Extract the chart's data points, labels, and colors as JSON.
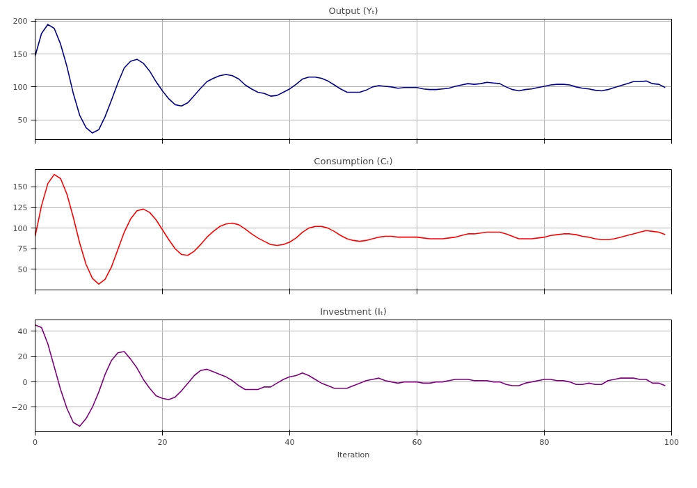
{
  "chart_data": [
    {
      "type": "line",
      "title": "Output (Yₜ)",
      "x": [
        0,
        1,
        2,
        3,
        4,
        5,
        6,
        7,
        8,
        9,
        10,
        11,
        12,
        13,
        14,
        15,
        16,
        17,
        18,
        19,
        20,
        21,
        22,
        23,
        24,
        25,
        26,
        27,
        28,
        29,
        30,
        31,
        32,
        33,
        34,
        35,
        36,
        37,
        38,
        39,
        40,
        41,
        42,
        43,
        44,
        45,
        46,
        47,
        48,
        49,
        50,
        51,
        52,
        53,
        54,
        55,
        56,
        57,
        58,
        59,
        60,
        61,
        62,
        63,
        64,
        65,
        66,
        67,
        68,
        69,
        70,
        71,
        72,
        73,
        74,
        75,
        76,
        77,
        78,
        79,
        80,
        81,
        82,
        83,
        84,
        85,
        86,
        87,
        88,
        89,
        90,
        91,
        92,
        93,
        94,
        95,
        96,
        97,
        98,
        99
      ],
      "series": [
        {
          "color": "#00008b",
          "values": [
            147,
            181,
            195,
            189,
            165,
            131,
            90,
            57,
            38,
            30,
            35,
            55,
            80,
            106,
            129,
            139,
            142,
            136,
            124,
            108,
            94,
            82,
            73,
            71,
            76,
            87,
            98,
            108,
            113,
            117,
            119,
            117,
            112,
            103,
            97,
            92,
            90,
            86,
            87,
            92,
            97,
            104,
            112,
            115,
            115,
            113,
            109,
            103,
            97,
            92,
            92,
            92,
            95,
            100,
            102,
            101,
            100,
            98,
            99,
            99,
            99,
            97,
            96,
            96,
            97,
            98,
            101,
            103,
            105,
            104,
            105,
            107,
            106,
            105,
            100,
            96,
            94,
            96,
            97,
            99,
            101,
            103,
            104,
            104,
            103,
            100,
            98,
            97,
            95,
            94,
            96,
            99,
            102,
            105,
            108,
            108,
            109,
            105,
            104,
            99
          ]
        }
      ],
      "xlim": [
        0,
        100
      ],
      "xticks": [
        0,
        20,
        40,
        60,
        80,
        100
      ],
      "ylim": [
        20,
        203
      ],
      "yticks": [
        50,
        100,
        150,
        200
      ],
      "grid": true,
      "tick_labels": "y"
    },
    {
      "type": "line",
      "title": "Consumption (Cₜ)",
      "x": [
        0,
        1,
        2,
        3,
        4,
        5,
        6,
        7,
        8,
        9,
        10,
        11,
        12,
        13,
        14,
        15,
        16,
        17,
        18,
        19,
        20,
        21,
        22,
        23,
        24,
        25,
        26,
        27,
        28,
        29,
        30,
        31,
        32,
        33,
        34,
        35,
        36,
        37,
        38,
        39,
        40,
        41,
        42,
        43,
        44,
        45,
        46,
        47,
        48,
        49,
        50,
        51,
        52,
        53,
        54,
        55,
        56,
        57,
        58,
        59,
        60,
        61,
        62,
        63,
        64,
        65,
        66,
        67,
        68,
        69,
        70,
        71,
        72,
        73,
        74,
        75,
        76,
        77,
        78,
        79,
        80,
        81,
        82,
        83,
        84,
        85,
        86,
        87,
        88,
        89,
        90,
        91,
        92,
        93,
        94,
        95,
        96,
        97,
        98,
        99
      ],
      "series": [
        {
          "color": "#ff0000",
          "values": [
            90,
            127,
            154,
            165,
            160,
            141,
            113,
            82,
            56,
            39,
            32,
            38,
            53,
            74,
            95,
            111,
            121,
            123,
            119,
            110,
            98,
            86,
            75,
            68,
            67,
            72,
            80,
            89,
            96,
            102,
            105,
            106,
            104,
            99,
            93,
            88,
            84,
            80,
            79,
            80,
            83,
            88,
            95,
            100,
            102,
            102,
            100,
            96,
            91,
            87,
            85,
            84,
            85,
            87,
            89,
            90,
            90,
            89,
            89,
            89,
            89,
            88,
            87,
            87,
            87,
            88,
            89,
            91,
            93,
            93,
            94,
            95,
            95,
            95,
            93,
            90,
            87,
            87,
            87,
            88,
            89,
            91,
            92,
            93,
            93,
            92,
            90,
            89,
            87,
            86,
            86,
            87,
            89,
            91,
            93,
            95,
            97,
            96,
            95,
            92
          ]
        }
      ],
      "xlim": [
        0,
        100
      ],
      "xticks": [
        0,
        20,
        40,
        60,
        80,
        100
      ],
      "ylim": [
        25,
        171
      ],
      "yticks": [
        50,
        75,
        100,
        125,
        150
      ],
      "grid": true,
      "tick_labels": "y"
    },
    {
      "type": "line",
      "title": "Investment (Iₜ)",
      "xlabel": "Iteration",
      "x": [
        0,
        1,
        2,
        3,
        4,
        5,
        6,
        7,
        8,
        9,
        10,
        11,
        12,
        13,
        14,
        15,
        16,
        17,
        18,
        19,
        20,
        21,
        22,
        23,
        24,
        25,
        26,
        27,
        28,
        29,
        30,
        31,
        32,
        33,
        34,
        35,
        36,
        37,
        38,
        39,
        40,
        41,
        42,
        43,
        44,
        45,
        46,
        47,
        48,
        49,
        50,
        51,
        52,
        53,
        54,
        55,
        56,
        57,
        58,
        59,
        60,
        61,
        62,
        63,
        64,
        65,
        66,
        67,
        68,
        69,
        70,
        71,
        72,
        73,
        74,
        75,
        76,
        77,
        78,
        79,
        80,
        81,
        82,
        83,
        84,
        85,
        86,
        87,
        88,
        89,
        90,
        91,
        92,
        93,
        94,
        95,
        96,
        97,
        98,
        99
      ],
      "series": [
        {
          "color": "#800080",
          "values": [
            45,
            43,
            30,
            12,
            -6,
            -21,
            -32,
            -35,
            -29,
            -20,
            -8,
            6,
            17,
            23,
            24,
            18,
            11,
            2,
            -5,
            -11,
            -13,
            -14,
            -12,
            -7,
            -1,
            5,
            9,
            10,
            8,
            6,
            4,
            1,
            -3,
            -6,
            -6,
            -6,
            -4,
            -4,
            -1,
            2,
            4,
            5,
            7,
            5,
            2,
            -1,
            -3,
            -5,
            -5,
            -5,
            -3,
            -1,
            1,
            2,
            3,
            1,
            0,
            -1,
            0,
            0,
            0,
            -1,
            -1,
            0,
            0,
            1,
            2,
            2,
            2,
            1,
            1,
            1,
            0,
            0,
            -2,
            -3,
            -3,
            -1,
            0,
            1,
            2,
            2,
            1,
            1,
            0,
            -2,
            -2,
            -1,
            -2,
            -2,
            1,
            2,
            3,
            3,
            3,
            2,
            2,
            -1,
            -1,
            -3
          ]
        }
      ],
      "xlim": [
        0,
        100
      ],
      "xticks": [
        0,
        20,
        40,
        60,
        80,
        100
      ],
      "ylim": [
        -39,
        49
      ],
      "yticks": [
        -20,
        0,
        20,
        40
      ],
      "grid": true
    }
  ]
}
